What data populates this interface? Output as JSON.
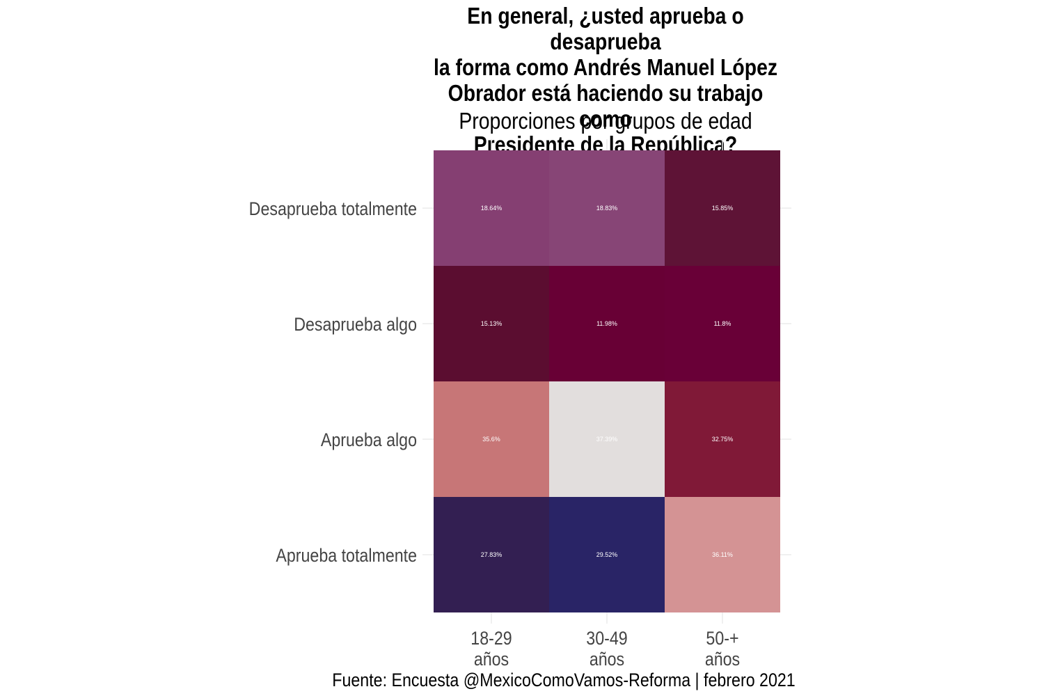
{
  "chart_data": {
    "type": "heatmap",
    "title": "En general, ¿usted aprueba o desaprueba\nla forma como Andrés Manuel López\nObrador está haciendo su trabajo como\nPresidente de la República?",
    "subtitle": "Proporciones por grupos de edad",
    "caption": "Fuente: Encuesta @MexicoComoVamos-Reforma | febrero 2021",
    "x_categories": [
      [
        "18-29",
        "años"
      ],
      [
        "30-49",
        "años"
      ],
      [
        "50-+",
        "años"
      ]
    ],
    "y_categories": [
      "Desaprueba totalmente",
      "Desaprueba algo",
      "Aprueba algo",
      "Aprueba totalmente"
    ],
    "cells": [
      [
        {
          "value": 18.64,
          "label": "18.64%",
          "color": "#853f72"
        },
        {
          "value": 18.83,
          "label": "18.83%",
          "color": "#874576"
        },
        {
          "value": 15.85,
          "label": "15.85%",
          "color": "#5e1336"
        }
      ],
      [
        {
          "value": 15.13,
          "label": "15.13%",
          "color": "#5b0d30"
        },
        {
          "value": 11.98,
          "label": "11.98%",
          "color": "#680035"
        },
        {
          "value": 11.8,
          "label": "11.8%",
          "color": "#690037"
        }
      ],
      [
        {
          "value": 35.6,
          "label": "35.6%",
          "color": "#c77677"
        },
        {
          "value": 37.39,
          "label": "37.39%",
          "color": "#e2dedd"
        },
        {
          "value": 32.75,
          "label": "32.75%",
          "color": "#801937"
        }
      ],
      [
        {
          "value": 27.83,
          "label": "27.83%",
          "color": "#331f52"
        },
        {
          "value": 29.52,
          "label": "29.52%",
          "color": "#292466"
        },
        {
          "value": 36.11,
          "label": "36.11%",
          "color": "#d49394"
        }
      ]
    ],
    "legend": "none",
    "grid": true
  }
}
